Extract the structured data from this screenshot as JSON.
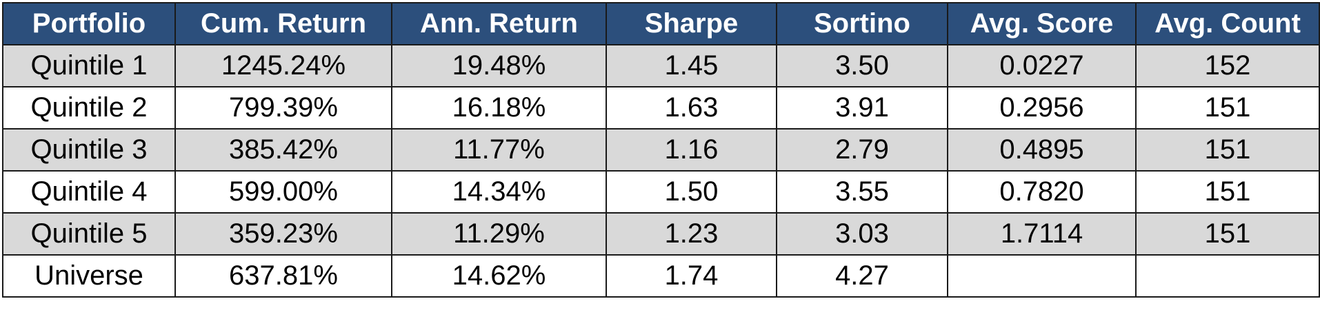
{
  "table": {
    "headers": [
      "Portfolio",
      "Cum. Return",
      "Ann. Return",
      "Sharpe",
      "Sortino",
      "Avg. Score",
      "Avg. Count"
    ],
    "rows": [
      [
        "Quintile 1",
        "1245.24%",
        "19.48%",
        "1.45",
        "3.50",
        "0.0227",
        "152"
      ],
      [
        "Quintile 2",
        "799.39%",
        "16.18%",
        "1.63",
        "3.91",
        "0.2956",
        "151"
      ],
      [
        "Quintile 3",
        "385.42%",
        "11.77%",
        "1.16",
        "2.79",
        "0.4895",
        "151"
      ],
      [
        "Quintile 4",
        "599.00%",
        "14.34%",
        "1.50",
        "3.55",
        "0.7820",
        "151"
      ],
      [
        "Quintile 5",
        "359.23%",
        "11.29%",
        "1.23",
        "3.03",
        "1.7114",
        "151"
      ],
      [
        "Universe",
        "637.81%",
        "14.62%",
        "1.74",
        "4.27",
        "",
        ""
      ]
    ]
  },
  "colors": {
    "header_bg": "#2c4f7c",
    "header_text": "#ffffff",
    "shaded_row_bg": "#d9d9d9",
    "plain_row_bg": "#ffffff",
    "border": "#1a1a1a"
  }
}
